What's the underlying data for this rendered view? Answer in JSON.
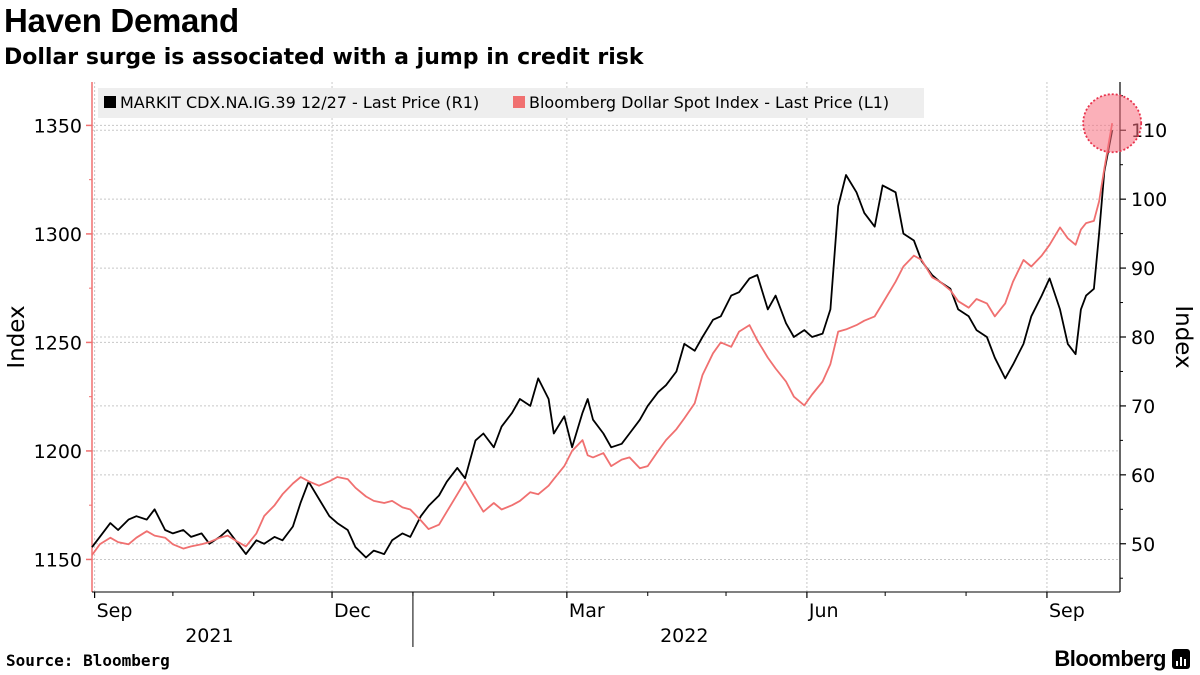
{
  "header": {
    "title": "Haven Demand",
    "subtitle": "Dollar surge is associated with a jump in credit risk"
  },
  "footer": {
    "source": "Source: Bloomberg",
    "brand": "Bloomberg",
    "brand_icon": "bloomberg-terminal-icon"
  },
  "colors": {
    "dollar_series": "#f07070",
    "cdx_series": "#000000",
    "highlight": "#f76f80",
    "grid": "#c8c8c8",
    "legend_bg": "#eeeeee"
  },
  "chart_data": {
    "type": "line",
    "title": "Haven Demand",
    "subtitle": "Dollar surge is associated with a jump in credit risk",
    "x_tick_labels": [
      {
        "label": "Sep",
        "date": "2021-09-01"
      },
      {
        "label": "Dec",
        "date": "2021-12-01"
      },
      {
        "label": "Mar",
        "date": "2022-03-01"
      },
      {
        "label": "Jun",
        "date": "2022-06-01"
      },
      {
        "label": "Sep",
        "date": "2022-09-01"
      }
    ],
    "x_year_labels": [
      {
        "label": "2021",
        "date": "2021-10-15"
      },
      {
        "label": "2022",
        "date": "2022-04-15"
      }
    ],
    "x_range": [
      "2021-08-31",
      "2022-09-29"
    ],
    "left_axis": {
      "label": "Index",
      "range": [
        1135,
        1370
      ],
      "ticks": [
        1150,
        1200,
        1250,
        1300,
        1350
      ]
    },
    "right_axis": {
      "label": "Index",
      "range": [
        43,
        117
      ],
      "ticks": [
        50,
        60,
        70,
        80,
        90,
        100,
        110
      ]
    },
    "grid": true,
    "legend_position": "top-left",
    "highlight": {
      "date": "2022-09-26",
      "left_value": 1351,
      "note": "latest reading circled"
    },
    "series": [
      {
        "name": "MARKIT CDX.NA.IG.39 12/27 - Last Price (R1)",
        "axis": "right",
        "points": [
          [
            "2021-08-31",
            49.5
          ],
          [
            "2021-09-03",
            51
          ],
          [
            "2021-09-07",
            53
          ],
          [
            "2021-09-10",
            52
          ],
          [
            "2021-09-14",
            53.5
          ],
          [
            "2021-09-17",
            54
          ],
          [
            "2021-09-21",
            53.5
          ],
          [
            "2021-09-24",
            55
          ],
          [
            "2021-09-28",
            52
          ],
          [
            "2021-10-01",
            51.5
          ],
          [
            "2021-10-05",
            52
          ],
          [
            "2021-10-08",
            51
          ],
          [
            "2021-10-12",
            51.5
          ],
          [
            "2021-10-15",
            50
          ],
          [
            "2021-10-19",
            51
          ],
          [
            "2021-10-22",
            52
          ],
          [
            "2021-10-26",
            50
          ],
          [
            "2021-10-29",
            48.5
          ],
          [
            "2021-11-02",
            50.5
          ],
          [
            "2021-11-05",
            50
          ],
          [
            "2021-11-09",
            51
          ],
          [
            "2021-11-12",
            50.5
          ],
          [
            "2021-11-16",
            52.5
          ],
          [
            "2021-11-19",
            56
          ],
          [
            "2021-11-22",
            59
          ],
          [
            "2021-11-26",
            56.5
          ],
          [
            "2021-11-30",
            54
          ],
          [
            "2021-12-03",
            53
          ],
          [
            "2021-12-07",
            52
          ],
          [
            "2021-12-10",
            49.5
          ],
          [
            "2021-12-14",
            48
          ],
          [
            "2021-12-17",
            49
          ],
          [
            "2021-12-21",
            48.5
          ],
          [
            "2021-12-24",
            50.5
          ],
          [
            "2021-12-28",
            51.5
          ],
          [
            "2021-12-31",
            51
          ],
          [
            "2022-01-04",
            54
          ],
          [
            "2022-01-07",
            55.5
          ],
          [
            "2022-01-11",
            57
          ],
          [
            "2022-01-14",
            59
          ],
          [
            "2022-01-18",
            61
          ],
          [
            "2022-01-21",
            59.5
          ],
          [
            "2022-01-25",
            65
          ],
          [
            "2022-01-28",
            66
          ],
          [
            "2022-02-01",
            64
          ],
          [
            "2022-02-04",
            67
          ],
          [
            "2022-02-08",
            69
          ],
          [
            "2022-02-11",
            71
          ],
          [
            "2022-02-15",
            70
          ],
          [
            "2022-02-18",
            74
          ],
          [
            "2022-02-22",
            71
          ],
          [
            "2022-02-24",
            66
          ],
          [
            "2022-02-28",
            68.5
          ],
          [
            "2022-03-03",
            64
          ],
          [
            "2022-03-07",
            69
          ],
          [
            "2022-03-09",
            71
          ],
          [
            "2022-03-11",
            68
          ],
          [
            "2022-03-15",
            66
          ],
          [
            "2022-03-18",
            64
          ],
          [
            "2022-03-22",
            64.5
          ],
          [
            "2022-03-25",
            66
          ],
          [
            "2022-03-29",
            68
          ],
          [
            "2022-04-01",
            70
          ],
          [
            "2022-04-05",
            72
          ],
          [
            "2022-04-08",
            73
          ],
          [
            "2022-04-12",
            75
          ],
          [
            "2022-04-15",
            79
          ],
          [
            "2022-04-19",
            78
          ],
          [
            "2022-04-22",
            80
          ],
          [
            "2022-04-26",
            82.5
          ],
          [
            "2022-04-29",
            83
          ],
          [
            "2022-05-03",
            86
          ],
          [
            "2022-05-06",
            86.5
          ],
          [
            "2022-05-10",
            88.5
          ],
          [
            "2022-05-13",
            89
          ],
          [
            "2022-05-17",
            84
          ],
          [
            "2022-05-20",
            86
          ],
          [
            "2022-05-24",
            82
          ],
          [
            "2022-05-27",
            80
          ],
          [
            "2022-05-31",
            81
          ],
          [
            "2022-06-03",
            80
          ],
          [
            "2022-06-07",
            80.5
          ],
          [
            "2022-06-10",
            84
          ],
          [
            "2022-06-13",
            99
          ],
          [
            "2022-06-16",
            103.5
          ],
          [
            "2022-06-20",
            101
          ],
          [
            "2022-06-23",
            98
          ],
          [
            "2022-06-27",
            96
          ],
          [
            "2022-06-30",
            102
          ],
          [
            "2022-07-05",
            101
          ],
          [
            "2022-07-08",
            95
          ],
          [
            "2022-07-12",
            94
          ],
          [
            "2022-07-15",
            91
          ],
          [
            "2022-07-19",
            89
          ],
          [
            "2022-07-22",
            88
          ],
          [
            "2022-07-26",
            87
          ],
          [
            "2022-07-29",
            84
          ],
          [
            "2022-08-02",
            83
          ],
          [
            "2022-08-05",
            81
          ],
          [
            "2022-08-09",
            80
          ],
          [
            "2022-08-12",
            77
          ],
          [
            "2022-08-16",
            74
          ],
          [
            "2022-08-19",
            76
          ],
          [
            "2022-08-23",
            79
          ],
          [
            "2022-08-26",
            83
          ],
          [
            "2022-08-30",
            86
          ],
          [
            "2022-09-02",
            88.5
          ],
          [
            "2022-09-06",
            84
          ],
          [
            "2022-09-09",
            79
          ],
          [
            "2022-09-12",
            77.5
          ],
          [
            "2022-09-14",
            84
          ],
          [
            "2022-09-16",
            86
          ],
          [
            "2022-09-19",
            87
          ],
          [
            "2022-09-21",
            95
          ],
          [
            "2022-09-23",
            104
          ],
          [
            "2022-09-26",
            110
          ]
        ]
      },
      {
        "name": "Bloomberg Dollar Spot Index - Last Price (L1)",
        "axis": "left",
        "points": [
          [
            "2021-08-31",
            1152
          ],
          [
            "2021-09-03",
            1157
          ],
          [
            "2021-09-07",
            1160
          ],
          [
            "2021-09-10",
            1158
          ],
          [
            "2021-09-14",
            1157
          ],
          [
            "2021-09-17",
            1160
          ],
          [
            "2021-09-21",
            1163
          ],
          [
            "2021-09-24",
            1161
          ],
          [
            "2021-09-28",
            1160
          ],
          [
            "2021-10-01",
            1157
          ],
          [
            "2021-10-05",
            1155
          ],
          [
            "2021-10-08",
            1156
          ],
          [
            "2021-10-12",
            1157
          ],
          [
            "2021-10-15",
            1158
          ],
          [
            "2021-10-19",
            1160
          ],
          [
            "2021-10-22",
            1161
          ],
          [
            "2021-10-26",
            1158
          ],
          [
            "2021-10-29",
            1156
          ],
          [
            "2021-11-02",
            1162
          ],
          [
            "2021-11-05",
            1170
          ],
          [
            "2021-11-09",
            1175
          ],
          [
            "2021-11-12",
            1180
          ],
          [
            "2021-11-16",
            1185
          ],
          [
            "2021-11-19",
            1188
          ],
          [
            "2021-11-22",
            1186
          ],
          [
            "2021-11-26",
            1184
          ],
          [
            "2021-11-30",
            1186
          ],
          [
            "2021-12-03",
            1188
          ],
          [
            "2021-12-07",
            1187
          ],
          [
            "2021-12-10",
            1183
          ],
          [
            "2021-12-14",
            1179
          ],
          [
            "2021-12-17",
            1177
          ],
          [
            "2021-12-21",
            1176
          ],
          [
            "2021-12-24",
            1177
          ],
          [
            "2021-12-28",
            1174
          ],
          [
            "2021-12-31",
            1173
          ],
          [
            "2022-01-04",
            1168
          ],
          [
            "2022-01-07",
            1164
          ],
          [
            "2022-01-11",
            1166
          ],
          [
            "2022-01-14",
            1172
          ],
          [
            "2022-01-18",
            1180
          ],
          [
            "2022-01-21",
            1186
          ],
          [
            "2022-01-25",
            1178
          ],
          [
            "2022-01-28",
            1172
          ],
          [
            "2022-02-01",
            1176
          ],
          [
            "2022-02-04",
            1173
          ],
          [
            "2022-02-08",
            1175
          ],
          [
            "2022-02-11",
            1177
          ],
          [
            "2022-02-15",
            1181
          ],
          [
            "2022-02-18",
            1180
          ],
          [
            "2022-02-22",
            1184
          ],
          [
            "2022-02-24",
            1187
          ],
          [
            "2022-02-28",
            1193
          ],
          [
            "2022-03-03",
            1200
          ],
          [
            "2022-03-07",
            1205
          ],
          [
            "2022-03-09",
            1198
          ],
          [
            "2022-03-11",
            1197
          ],
          [
            "2022-03-15",
            1199
          ],
          [
            "2022-03-18",
            1193
          ],
          [
            "2022-03-22",
            1196
          ],
          [
            "2022-03-25",
            1197
          ],
          [
            "2022-03-29",
            1192
          ],
          [
            "2022-04-01",
            1193
          ],
          [
            "2022-04-05",
            1200
          ],
          [
            "2022-04-08",
            1205
          ],
          [
            "2022-04-12",
            1210
          ],
          [
            "2022-04-15",
            1215
          ],
          [
            "2022-04-19",
            1222
          ],
          [
            "2022-04-22",
            1235
          ],
          [
            "2022-04-26",
            1245
          ],
          [
            "2022-04-29",
            1250
          ],
          [
            "2022-05-03",
            1248
          ],
          [
            "2022-05-06",
            1255
          ],
          [
            "2022-05-10",
            1258
          ],
          [
            "2022-05-13",
            1251
          ],
          [
            "2022-05-17",
            1243
          ],
          [
            "2022-05-20",
            1238
          ],
          [
            "2022-05-24",
            1232
          ],
          [
            "2022-05-27",
            1225
          ],
          [
            "2022-05-31",
            1221
          ],
          [
            "2022-06-03",
            1226
          ],
          [
            "2022-06-07",
            1232
          ],
          [
            "2022-06-10",
            1240
          ],
          [
            "2022-06-13",
            1255
          ],
          [
            "2022-06-16",
            1256
          ],
          [
            "2022-06-20",
            1258
          ],
          [
            "2022-06-23",
            1260
          ],
          [
            "2022-06-27",
            1262
          ],
          [
            "2022-06-30",
            1268
          ],
          [
            "2022-07-05",
            1278
          ],
          [
            "2022-07-08",
            1285
          ],
          [
            "2022-07-12",
            1290
          ],
          [
            "2022-07-15",
            1288
          ],
          [
            "2022-07-19",
            1280
          ],
          [
            "2022-07-22",
            1278
          ],
          [
            "2022-07-26",
            1274
          ],
          [
            "2022-07-29",
            1269
          ],
          [
            "2022-08-02",
            1266
          ],
          [
            "2022-08-05",
            1270
          ],
          [
            "2022-08-09",
            1268
          ],
          [
            "2022-08-12",
            1262
          ],
          [
            "2022-08-16",
            1268
          ],
          [
            "2022-08-19",
            1278
          ],
          [
            "2022-08-23",
            1288
          ],
          [
            "2022-08-26",
            1285
          ],
          [
            "2022-08-30",
            1290
          ],
          [
            "2022-09-02",
            1295
          ],
          [
            "2022-09-06",
            1303
          ],
          [
            "2022-09-09",
            1298
          ],
          [
            "2022-09-12",
            1295
          ],
          [
            "2022-09-14",
            1302
          ],
          [
            "2022-09-16",
            1305
          ],
          [
            "2022-09-19",
            1306
          ],
          [
            "2022-09-21",
            1315
          ],
          [
            "2022-09-23",
            1330
          ],
          [
            "2022-09-26",
            1351
          ]
        ]
      }
    ]
  }
}
